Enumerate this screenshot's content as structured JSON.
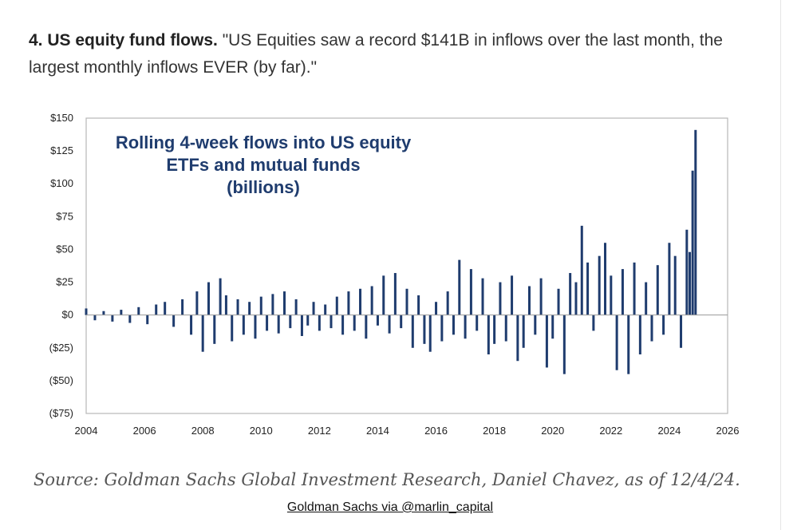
{
  "heading": {
    "lead": "4. US equity fund flows.",
    "quote": " \"US Equities saw a record $141B in inflows over the last month, the largest monthly inflows EVER (by far).\""
  },
  "source": "Source: Goldman Sachs Global Investment Research, Daniel Chavez,  as of 12/4/24.",
  "credit": "Goldman Sachs via @marlin_capital",
  "chart_data": {
    "type": "bar",
    "title_lines": [
      "Rolling 4-week flows into US equity",
      "ETFs and mutual funds",
      "(billions)"
    ],
    "xlabel": "",
    "ylabel": "",
    "xlim": [
      2004,
      2026
    ],
    "ylim": [
      -75,
      150
    ],
    "x_ticks": [
      "2004",
      "2006",
      "2008",
      "2010",
      "2012",
      "2014",
      "2016",
      "2018",
      "2020",
      "2022",
      "2024",
      "2026"
    ],
    "y_ticks": [
      {
        "value": 150,
        "label": "$150"
      },
      {
        "value": 125,
        "label": "$125"
      },
      {
        "value": 100,
        "label": "$100"
      },
      {
        "value": 75,
        "label": "$75"
      },
      {
        "value": 50,
        "label": "$50"
      },
      {
        "value": 25,
        "label": "$25"
      },
      {
        "value": 0,
        "label": "$0"
      },
      {
        "value": -25,
        "label": "($25)"
      },
      {
        "value": -50,
        "label": "($50)"
      },
      {
        "value": -75,
        "label": "($75)"
      }
    ],
    "bar_color": "#1f3c6e",
    "series": [
      {
        "x": [
          2004.0,
          2004.3,
          2004.6,
          2004.9,
          2005.2,
          2005.5,
          2005.8,
          2006.1,
          2006.4,
          2006.7,
          2007.0,
          2007.3,
          2007.6,
          2007.8,
          2008.0,
          2008.2,
          2008.4,
          2008.6,
          2008.8,
          2009.0,
          2009.2,
          2009.4,
          2009.6,
          2009.8,
          2010.0,
          2010.2,
          2010.4,
          2010.6,
          2010.8,
          2011.0,
          2011.2,
          2011.4,
          2011.6,
          2011.8,
          2012.0,
          2012.2,
          2012.4,
          2012.6,
          2012.8,
          2013.0,
          2013.2,
          2013.4,
          2013.6,
          2013.8,
          2014.0,
          2014.2,
          2014.4,
          2014.6,
          2014.8,
          2015.0,
          2015.2,
          2015.4,
          2015.6,
          2015.8,
          2016.0,
          2016.2,
          2016.4,
          2016.6,
          2016.8,
          2017.0,
          2017.2,
          2017.4,
          2017.6,
          2017.8,
          2018.0,
          2018.2,
          2018.4,
          2018.6,
          2018.8,
          2019.0,
          2019.2,
          2019.4,
          2019.6,
          2019.8,
          2020.0,
          2020.2,
          2020.4,
          2020.6,
          2020.8,
          2021.0,
          2021.2,
          2021.4,
          2021.6,
          2021.8,
          2022.0,
          2022.2,
          2022.4,
          2022.6,
          2022.8,
          2023.0,
          2023.2,
          2023.4,
          2023.6,
          2023.8,
          2024.0,
          2024.2,
          2024.4,
          2024.6,
          2024.7,
          2024.8,
          2024.9
        ],
        "values": [
          5,
          -4,
          3,
          -5,
          4,
          -6,
          6,
          -7,
          8,
          10,
          -9,
          12,
          -15,
          18,
          -28,
          25,
          -22,
          28,
          15,
          -20,
          12,
          -15,
          10,
          -18,
          14,
          -12,
          16,
          -14,
          18,
          -10,
          12,
          -16,
          -8,
          10,
          -12,
          8,
          -10,
          14,
          -15,
          18,
          -12,
          20,
          -18,
          22,
          -8,
          30,
          -14,
          32,
          -10,
          20,
          -25,
          15,
          -22,
          -28,
          10,
          -20,
          18,
          -15,
          42,
          -18,
          35,
          -12,
          28,
          -30,
          -22,
          25,
          -20,
          30,
          -35,
          -25,
          22,
          -15,
          28,
          -40,
          -18,
          20,
          -45,
          32,
          25,
          68,
          40,
          -12,
          45,
          55,
          30,
          -42,
          35,
          -45,
          40,
          -30,
          25,
          -20,
          38,
          -15,
          55,
          45,
          -25,
          65,
          48,
          110,
          141
        ]
      }
    ]
  }
}
